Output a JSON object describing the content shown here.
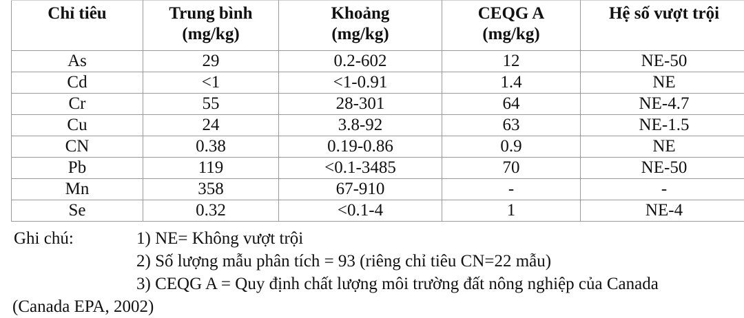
{
  "table": {
    "headers": [
      [
        "Chỉ tiêu",
        ""
      ],
      [
        "Trung bình",
        "(mg/kg)"
      ],
      [
        "Khoảng",
        "(mg/kg)"
      ],
      [
        "CEQG A",
        "(mg/kg)"
      ],
      [
        "Hệ số vượt trội",
        ""
      ]
    ],
    "rows": [
      [
        "As",
        "29",
        "0.2-602",
        "12",
        "NE-50"
      ],
      [
        "Cd",
        "<1",
        "<1-0.91",
        "1.4",
        "NE"
      ],
      [
        "Cr",
        "55",
        "28-301",
        "64",
        "NE-4.7"
      ],
      [
        "Cu",
        "24",
        "3.8-92",
        "63",
        "NE-1.5"
      ],
      [
        "CN",
        "0.38",
        "0.19-0.86",
        "0.9",
        "NE"
      ],
      [
        "Pb",
        "119",
        "<0.1-3485",
        "70",
        "NE-50"
      ],
      [
        "Mn",
        "358",
        "67-910",
        "-",
        "-"
      ],
      [
        "Se",
        "0.32",
        "<0.1-4",
        "1",
        "NE-4"
      ]
    ]
  },
  "notes": {
    "label": "Ghi chú:",
    "items": [
      "1) NE= Không vượt trội",
      "2) Số lượng mẫu phân tích = 93 (riêng chỉ tiêu CN=22 mẫu)",
      "3) CEQG A = Quy định chất lượng môi trường đất nông nghiệp của Canada"
    ],
    "continuation": "(Canada EPA, 2002)"
  }
}
